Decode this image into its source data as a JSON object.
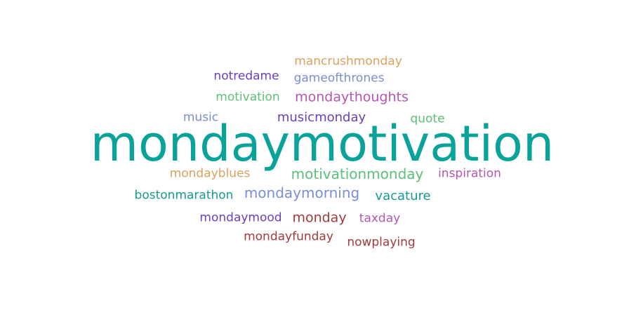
{
  "word_cloud": {
    "words": [
      {
        "text": "mondaymotivation",
        "color": "#0aa39a"
      },
      {
        "text": "mancrushmonday",
        "color": "#dba15e"
      },
      {
        "text": "notredame",
        "color": "#6a3fbf"
      },
      {
        "text": "gameofthrones",
        "color": "#7b8fd6"
      },
      {
        "text": "motivation",
        "color": "#5cc07a"
      },
      {
        "text": "mondaythoughts",
        "color": "#b655b6"
      },
      {
        "text": "music",
        "color": "#7b8fd6"
      },
      {
        "text": "musicmonday",
        "color": "#6a3fbf"
      },
      {
        "text": "quote",
        "color": "#5cc07a"
      },
      {
        "text": "mondayblues",
        "color": "#dba15e"
      },
      {
        "text": "motivationmonday",
        "color": "#5cc07a"
      },
      {
        "text": "inspiration",
        "color": "#b655b6"
      },
      {
        "text": "bostonmarathon",
        "color": "#159b8f"
      },
      {
        "text": "mondaymorning",
        "color": "#7b8fd6"
      },
      {
        "text": "vacature",
        "color": "#159b8f"
      },
      {
        "text": "mondaymood",
        "color": "#6a3fbf"
      },
      {
        "text": "monday",
        "color": "#a13b3b"
      },
      {
        "text": "taxday",
        "color": "#b655b6"
      },
      {
        "text": "mondayfunday",
        "color": "#a13b3b"
      },
      {
        "text": "nowplaying",
        "color": "#a13b3b"
      }
    ]
  }
}
